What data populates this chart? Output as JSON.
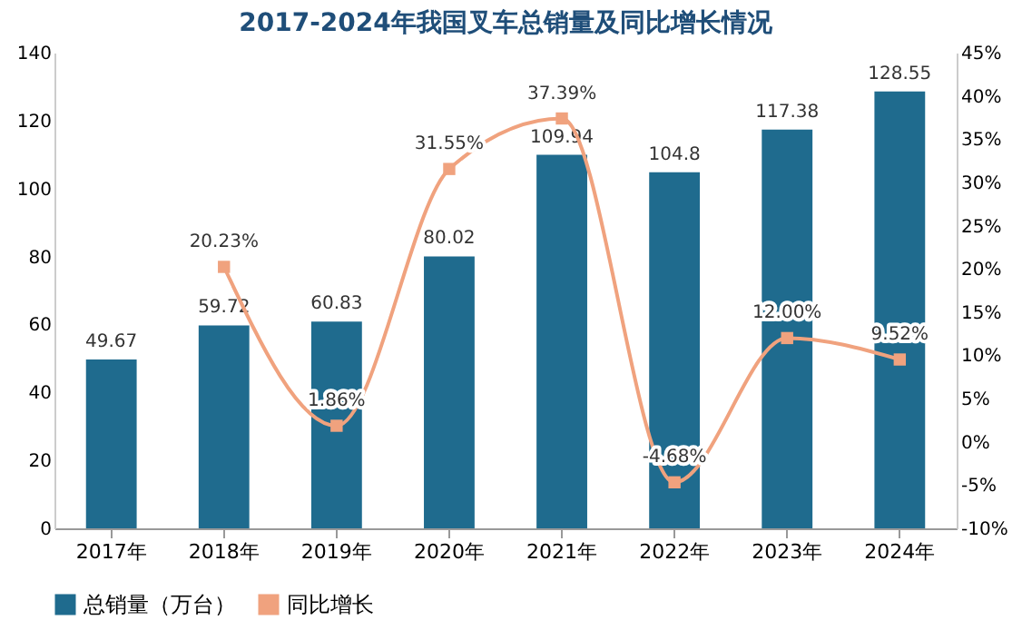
{
  "chart_data": {
    "type": "bar",
    "title": "2017-2024年我国叉车总销量及同比增长情况",
    "categories": [
      "2017年",
      "2018年",
      "2019年",
      "2020年",
      "2021年",
      "2022年",
      "2023年",
      "2024年"
    ],
    "series": [
      {
        "name": "总销量（万台）",
        "color": "#1f6b8e",
        "values": [
          49.67,
          59.72,
          60.83,
          80.02,
          109.94,
          104.8,
          117.38,
          128.55
        ],
        "value_labels": [
          "49.67",
          "59.72",
          "60.83",
          "80.02",
          "109.94",
          "104.8",
          "117.38",
          "128.55"
        ]
      },
      {
        "name": "同比增长",
        "type": "line",
        "axis": "y2",
        "color": "#f0a27e",
        "values": [
          null,
          20.23,
          1.86,
          31.55,
          37.39,
          -4.68,
          12.0,
          9.52
        ],
        "value_labels": [
          null,
          "20.23%",
          "1.86%",
          "31.55%",
          "37.39%",
          "-4.68%",
          "12.00%",
          "9.52%"
        ]
      }
    ],
    "ylim": [
      0,
      140
    ],
    "yticks": [
      0,
      20,
      40,
      60,
      80,
      100,
      120,
      140
    ],
    "y2lim": [
      -10,
      45
    ],
    "y2ticks": [
      {
        "value": -10,
        "label": "-10%"
      },
      {
        "value": -5,
        "label": "-5%"
      },
      {
        "value": 0,
        "label": "0%"
      },
      {
        "value": 5,
        "label": "5%"
      },
      {
        "value": 10,
        "label": "10%"
      },
      {
        "value": 15,
        "label": "15%"
      },
      {
        "value": 20,
        "label": "20%"
      },
      {
        "value": 25,
        "label": "25%"
      },
      {
        "value": 30,
        "label": "30%"
      },
      {
        "value": 35,
        "label": "35%"
      },
      {
        "value": 40,
        "label": "40%"
      },
      {
        "value": 45,
        "label": "45%"
      }
    ],
    "marker": "square",
    "legend": "bottom",
    "grid": false
  }
}
